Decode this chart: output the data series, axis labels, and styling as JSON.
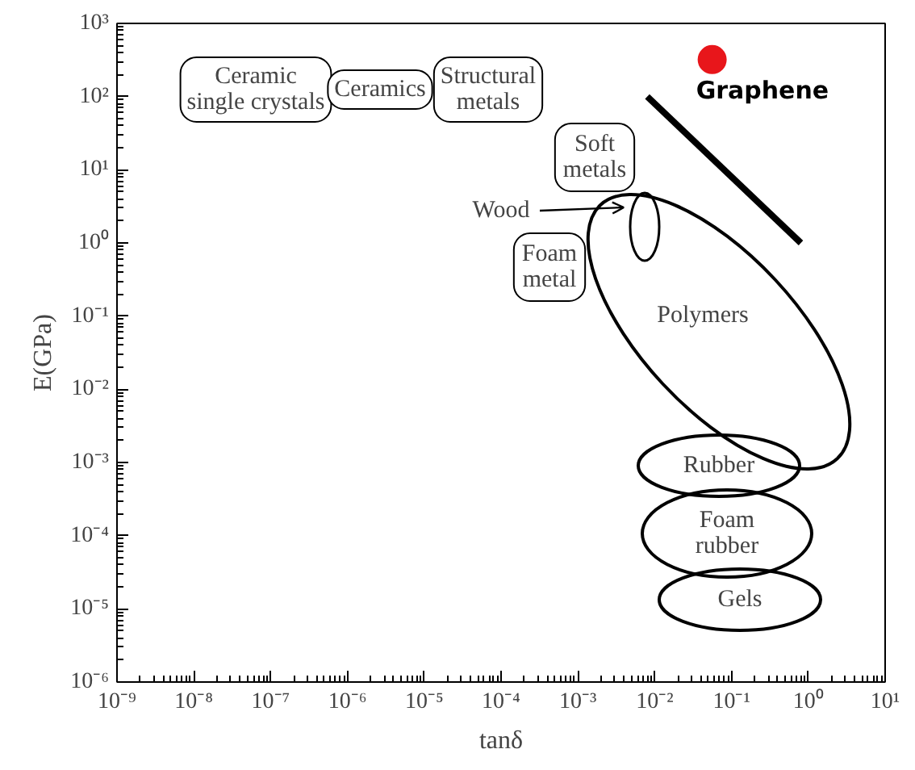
{
  "chart_data": {
    "type": "scatter",
    "xlabel": "tanδ",
    "ylabel": "E(GPa)",
    "log": "xy",
    "grid": false,
    "xlim": [
      1e-09,
      10
    ],
    "ylim": [
      1e-06,
      1000
    ],
    "xticks": [
      {
        "value": 1e-09,
        "label": "10⁻⁹"
      },
      {
        "value": 1e-08,
        "label": "10⁻⁸"
      },
      {
        "value": 1e-07,
        "label": "10⁻⁷"
      },
      {
        "value": 1e-06,
        "label": "10⁻⁶"
      },
      {
        "value": 1e-05,
        "label": "10⁻⁵"
      },
      {
        "value": 0.0001,
        "label": "10⁻⁴"
      },
      {
        "value": 0.001,
        "label": "10⁻³"
      },
      {
        "value": 0.01,
        "label": "10⁻²"
      },
      {
        "value": 0.1,
        "label": "10⁻¹"
      },
      {
        "value": 1,
        "label": "10⁰"
      },
      {
        "value": 10,
        "label": "10¹"
      }
    ],
    "yticks": [
      {
        "value": 1e-06,
        "label": "10⁻⁶"
      },
      {
        "value": 1e-05,
        "label": "10⁻⁵"
      },
      {
        "value": 0.0001,
        "label": "10⁻⁴"
      },
      {
        "value": 0.001,
        "label": "10⁻³"
      },
      {
        "value": 0.01,
        "label": "10⁻²"
      },
      {
        "value": 0.1,
        "label": "10⁻¹"
      },
      {
        "value": 1,
        "label": "10⁰"
      },
      {
        "value": 10,
        "label": "10¹"
      },
      {
        "value": 100,
        "label": "10²"
      },
      {
        "value": 1000,
        "label": "10³"
      }
    ],
    "series": [
      {
        "name": "Graphene",
        "marker": "circle",
        "color": "#e8161b",
        "x": [
          0.056
        ],
        "values": [
          320
        ]
      },
      {
        "type": "line",
        "color": "#000000",
        "x": [
          0.008,
          0.8
        ],
        "values": [
          100,
          1
        ]
      }
    ],
    "annotations": [
      "Ceramic\nsingle crystals",
      "Ceramics",
      "Structural\nmetals",
      "Soft\nmetals",
      "Wood",
      "Foam\nmetal",
      "Polymers",
      "Rubber",
      "Foam\nrubber",
      "Gels"
    ]
  }
}
